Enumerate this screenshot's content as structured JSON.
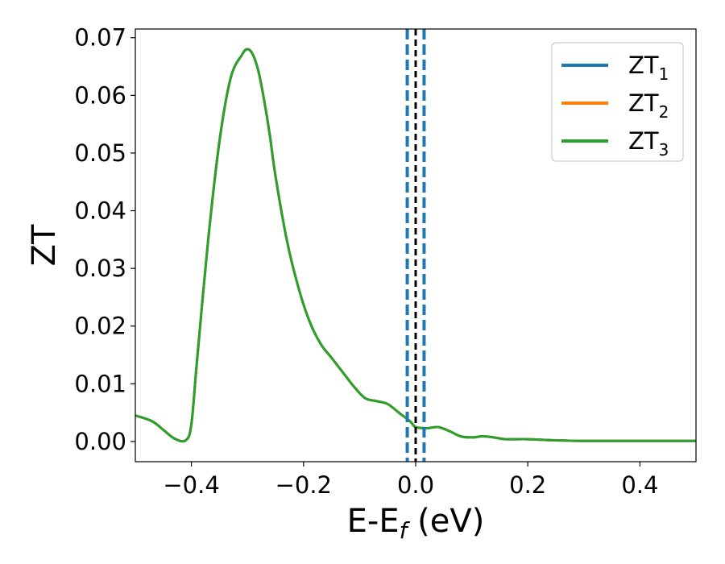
{
  "chart_data": {
    "type": "line",
    "xlabel": "E-E",
    "xlabel_sub": "f",
    "xlabel_unit": " (eV)",
    "ylabel": "ZT",
    "xlim": [
      -0.5,
      0.5
    ],
    "ylim": [
      -0.0035,
      0.0715
    ],
    "xticks": [
      -0.4,
      -0.2,
      0.0,
      0.2,
      0.4
    ],
    "xtick_labels": [
      "−0.4",
      "−0.2",
      "0.0",
      "0.2",
      "0.4"
    ],
    "yticks": [
      0.0,
      0.01,
      0.02,
      0.03,
      0.04,
      0.05,
      0.06,
      0.07
    ],
    "ytick_labels": [
      "0.00",
      "0.01",
      "0.02",
      "0.03",
      "0.04",
      "0.05",
      "0.06",
      "0.07"
    ],
    "grid": false,
    "legend_position": "top-right",
    "vertical_lines": [
      {
        "x": -0.015,
        "color": "#1f77b4",
        "style": "dashed"
      },
      {
        "x": 0.0,
        "color": "#000000",
        "style": "dashed"
      },
      {
        "x": 0.015,
        "color": "#1f77b4",
        "style": "dashed"
      }
    ],
    "x": [
      -0.5,
      -0.47,
      -0.45,
      -0.43,
      -0.41,
      -0.4,
      -0.39,
      -0.37,
      -0.35,
      -0.33,
      -0.31,
      -0.3,
      -0.29,
      -0.28,
      -0.27,
      -0.26,
      -0.25,
      -0.23,
      -0.21,
      -0.19,
      -0.17,
      -0.15,
      -0.13,
      -0.11,
      -0.09,
      -0.07,
      -0.05,
      -0.03,
      -0.01,
      0.0,
      0.02,
      0.04,
      0.06,
      0.08,
      0.1,
      0.12,
      0.14,
      0.16,
      0.2,
      0.25,
      0.3,
      0.35,
      0.4,
      0.45,
      0.5
    ],
    "series": [
      {
        "name": "ZT",
        "sub": "1",
        "color": "#1f77b4",
        "values": [
          0.0045,
          0.0035,
          0.002,
          0.0005,
          0.0002,
          0.003,
          0.014,
          0.035,
          0.052,
          0.063,
          0.067,
          0.068,
          0.067,
          0.064,
          0.059,
          0.053,
          0.046,
          0.035,
          0.027,
          0.021,
          0.017,
          0.0145,
          0.012,
          0.0095,
          0.0075,
          0.007,
          0.0065,
          0.005,
          0.0035,
          0.0025,
          0.0023,
          0.0025,
          0.0018,
          0.0009,
          0.0007,
          0.0009,
          0.0007,
          0.0004,
          0.0004,
          0.0002,
          0.0001,
          0.0001,
          0.0001,
          0.0001,
          0.0001
        ]
      },
      {
        "name": "ZT",
        "sub": "2",
        "color": "#ff7f0e",
        "values": [
          0.0045,
          0.0035,
          0.002,
          0.0005,
          0.0002,
          0.003,
          0.014,
          0.035,
          0.052,
          0.063,
          0.067,
          0.068,
          0.067,
          0.064,
          0.059,
          0.053,
          0.046,
          0.035,
          0.027,
          0.021,
          0.017,
          0.0145,
          0.012,
          0.0095,
          0.0075,
          0.007,
          0.0065,
          0.005,
          0.0035,
          0.0025,
          0.0023,
          0.0025,
          0.0018,
          0.0009,
          0.0007,
          0.0009,
          0.0007,
          0.0004,
          0.0004,
          0.0002,
          0.0001,
          0.0001,
          0.0001,
          0.0001,
          0.0001
        ]
      },
      {
        "name": "ZT",
        "sub": "3",
        "color": "#2ca02c",
        "values": [
          0.0045,
          0.0035,
          0.002,
          0.0005,
          0.0002,
          0.003,
          0.014,
          0.035,
          0.052,
          0.063,
          0.067,
          0.068,
          0.067,
          0.064,
          0.059,
          0.053,
          0.046,
          0.035,
          0.027,
          0.021,
          0.017,
          0.0145,
          0.012,
          0.0095,
          0.0075,
          0.007,
          0.0065,
          0.005,
          0.0035,
          0.0025,
          0.0023,
          0.0025,
          0.0018,
          0.0009,
          0.0007,
          0.0009,
          0.0007,
          0.0004,
          0.0004,
          0.0002,
          0.0001,
          0.0001,
          0.0001,
          0.0001,
          0.0001
        ]
      }
    ]
  }
}
